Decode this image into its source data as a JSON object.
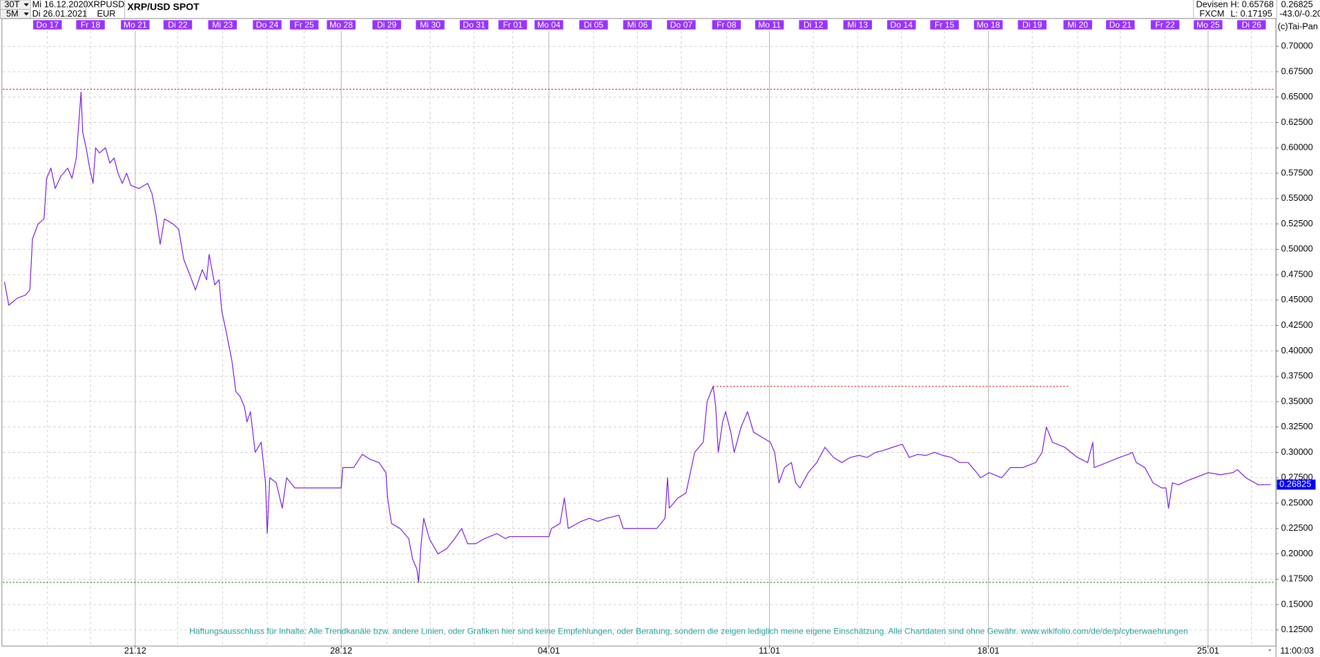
{
  "header": {
    "interval": "30T",
    "from_date": "Mi 16.12.2020",
    "symbol": "XRPUSD",
    "title": "XRP/USD SPOT",
    "resolution": "5M",
    "to_date": "Di 26.01.2021",
    "currency": "EUR",
    "market": "Devisen",
    "exchange": "FXCM",
    "high": "H: 0.65768",
    "low": "L: 0.17195",
    "change": "-43.0/-0.20",
    "copyright": "(c)Tai-Pan",
    "time": "11:00:03"
  },
  "chart_data": {
    "type": "line",
    "color": "#7b1fe0",
    "grid": true,
    "disclaimer": "Haftungsausschluss für Inhalte: Alle Trendkanäle bzw. andere Linien, oder Grafiken hier sind keine Empfehlungen, oder Beratung, sondern die zeigen lediglich meine eigene Einschätzung. Alle Chartdaten sind ohne Gewähr.  www.wikifolio.com/de/de/p/cyberwaehrungen",
    "last_price": 0.26825,
    "last_price_color": "#0000ff",
    "xlim": [
      -1.04,
      28.55
    ],
    "ylim": [
      0.11,
      0.715
    ],
    "yticks": [
      {
        "value": 0.125,
        "label": "0.12500"
      },
      {
        "value": 0.15,
        "label": "0.15000"
      },
      {
        "value": 0.175,
        "label": "0.17500"
      },
      {
        "value": 0.2,
        "label": "0.20000"
      },
      {
        "value": 0.225,
        "label": "0.22500"
      },
      {
        "value": 0.25,
        "label": "0.25000"
      },
      {
        "value": 0.275,
        "label": "0.27500"
      },
      {
        "value": 0.3,
        "label": "0.30000"
      },
      {
        "value": 0.325,
        "label": "0.32500"
      },
      {
        "value": 0.35,
        "label": "0.35000"
      },
      {
        "value": 0.375,
        "label": "0.37500"
      },
      {
        "value": 0.4,
        "label": "0.40000"
      },
      {
        "value": 0.425,
        "label": "0.42500"
      },
      {
        "value": 0.45,
        "label": "0.45000"
      },
      {
        "value": 0.475,
        "label": "0.47500"
      },
      {
        "value": 0.5,
        "label": "0.50000"
      },
      {
        "value": 0.525,
        "label": "0.52500"
      },
      {
        "value": 0.55,
        "label": "0.55000"
      },
      {
        "value": 0.575,
        "label": "0.57500"
      },
      {
        "value": 0.6,
        "label": "0.60000"
      },
      {
        "value": 0.625,
        "label": "0.62500"
      },
      {
        "value": 0.65,
        "label": "0.65000"
      },
      {
        "value": 0.675,
        "label": "0.67500"
      },
      {
        "value": 0.7,
        "label": "0.70000"
      }
    ],
    "xticks": [
      {
        "value": 2.04,
        "label": "21.12"
      },
      {
        "value": 6.83,
        "label": "28.12"
      },
      {
        "value": 11.66,
        "label": "04.01"
      },
      {
        "value": 16.79,
        "label": "11.01"
      },
      {
        "value": 21.88,
        "label": "18.01"
      },
      {
        "value": 26.99,
        "label": "25.01"
      }
    ],
    "day_ticks": [
      {
        "value": 0,
        "label": "Do 17"
      },
      {
        "value": 1.0,
        "label": "Fr 18"
      },
      {
        "value": 2.04,
        "label": "Mo 21"
      },
      {
        "value": 3.03,
        "label": "Di 22"
      },
      {
        "value": 4.07,
        "label": "Mi 23"
      },
      {
        "value": 5.11,
        "label": "Do 24"
      },
      {
        "value": 5.97,
        "label": "Fr 25"
      },
      {
        "value": 6.83,
        "label": "Mo 28"
      },
      {
        "value": 7.89,
        "label": "Di 29"
      },
      {
        "value": 8.9,
        "label": "Mi 30"
      },
      {
        "value": 9.92,
        "label": "Do 31"
      },
      {
        "value": 10.82,
        "label": "Fr 01"
      },
      {
        "value": 11.66,
        "label": "Mo 04"
      },
      {
        "value": 12.7,
        "label": "Di 05"
      },
      {
        "value": 13.72,
        "label": "Mi 06"
      },
      {
        "value": 14.74,
        "label": "Do 07"
      },
      {
        "value": 15.79,
        "label": "Fr 08"
      },
      {
        "value": 16.79,
        "label": "Mo 11"
      },
      {
        "value": 17.81,
        "label": "Di 12"
      },
      {
        "value": 18.84,
        "label": "Mi 13"
      },
      {
        "value": 19.86,
        "label": "Do 14"
      },
      {
        "value": 20.86,
        "label": "Fr 15"
      },
      {
        "value": 21.88,
        "label": "Mo 18"
      },
      {
        "value": 22.9,
        "label": "Di 19"
      },
      {
        "value": 23.96,
        "label": "Mi 20"
      },
      {
        "value": 24.95,
        "label": "Do 21"
      },
      {
        "value": 25.99,
        "label": "Fr 22"
      },
      {
        "value": 26.99,
        "label": "Mo 25"
      },
      {
        "value": 28.0,
        "label": "Di 26"
      }
    ],
    "day_label_color": "#9933ff",
    "reference_lines": [
      {
        "value": 0.65768,
        "color": "#e03030",
        "from": -1.04,
        "to": 28.55
      },
      {
        "value": 0.365,
        "color": "#e03030",
        "from": 15.48,
        "to": 23.76
      },
      {
        "value": 0.17195,
        "color": "#208020",
        "from": -1.04,
        "to": 28.55
      }
    ],
    "x": [
      -1.0,
      -0.9,
      -0.7,
      -0.51,
      -0.41,
      -0.35,
      -0.22,
      -0.08,
      -0.02,
      0.08,
      0.18,
      0.31,
      0.47,
      0.57,
      0.67,
      0.78,
      0.82,
      0.9,
      0.98,
      1.06,
      1.12,
      1.21,
      1.35,
      1.45,
      1.55,
      1.64,
      1.74,
      1.84,
      1.94,
      2.13,
      2.33,
      2.43,
      2.52,
      2.62,
      2.72,
      2.92,
      3.05,
      3.17,
      3.31,
      3.44,
      3.6,
      3.7,
      3.76,
      3.89,
      3.99,
      4.05,
      4.15,
      4.29,
      4.38,
      4.48,
      4.58,
      4.64,
      4.72,
      4.83,
      4.97,
      5.07,
      5.11,
      5.17,
      5.32,
      5.46,
      5.56,
      5.75,
      5.91,
      6.83,
      6.87,
      7.12,
      7.32,
      7.51,
      7.71,
      7.87,
      7.91,
      8.0,
      8.2,
      8.4,
      8.49,
      8.59,
      8.63,
      8.69,
      8.75,
      8.88,
      9.08,
      9.28,
      9.47,
      9.63,
      9.77,
      9.96,
      10.16,
      10.45,
      10.65,
      10.74,
      11.66,
      11.72,
      11.92,
      12.02,
      12.11,
      12.41,
      12.6,
      12.8,
      12.99,
      13.29,
      13.39,
      13.78,
      14.17,
      14.36,
      14.42,
      14.46,
      14.66,
      14.85,
      14.95,
      15.05,
      15.25,
      15.34,
      15.48,
      15.54,
      15.6,
      15.7,
      15.77,
      15.89,
      15.97,
      16.13,
      16.28,
      16.42,
      16.61,
      16.81,
      16.91,
      17.01,
      17.14,
      17.3,
      17.4,
      17.5,
      17.69,
      17.89,
      18.08,
      18.28,
      18.47,
      18.67,
      18.87,
      19.06,
      19.26,
      19.45,
      19.65,
      19.88,
      20.04,
      20.24,
      20.43,
      20.63,
      20.82,
      21.02,
      21.21,
      21.41,
      21.61,
      21.7,
      21.9,
      22.19,
      22.39,
      22.68,
      22.98,
      23.13,
      23.23,
      23.37,
      23.66,
      23.95,
      24.19,
      24.31,
      24.34,
      24.64,
      24.93,
      25.13,
      25.23,
      25.32,
      25.52,
      25.71,
      25.91,
      26.01,
      26.07,
      26.16,
      26.3,
      26.5,
      26.69,
      26.99,
      27.28,
      27.57,
      27.67,
      27.87,
      28.16,
      28.45
    ],
    "values": [
      0.468,
      0.445,
      0.452,
      0.455,
      0.46,
      0.51,
      0.525,
      0.53,
      0.57,
      0.58,
      0.56,
      0.572,
      0.58,
      0.57,
      0.59,
      0.655,
      0.615,
      0.6,
      0.58,
      0.565,
      0.6,
      0.595,
      0.6,
      0.585,
      0.59,
      0.575,
      0.565,
      0.575,
      0.563,
      0.56,
      0.565,
      0.555,
      0.535,
      0.505,
      0.53,
      0.525,
      0.52,
      0.49,
      0.475,
      0.46,
      0.48,
      0.47,
      0.495,
      0.465,
      0.47,
      0.44,
      0.42,
      0.39,
      0.36,
      0.355,
      0.345,
      0.33,
      0.34,
      0.3,
      0.31,
      0.27,
      0.22,
      0.275,
      0.27,
      0.245,
      0.275,
      0.265,
      0.265,
      0.265,
      0.285,
      0.285,
      0.298,
      0.293,
      0.29,
      0.28,
      0.255,
      0.23,
      0.225,
      0.215,
      0.195,
      0.185,
      0.172,
      0.21,
      0.235,
      0.215,
      0.2,
      0.205,
      0.215,
      0.225,
      0.21,
      0.21,
      0.215,
      0.22,
      0.215,
      0.217,
      0.217,
      0.225,
      0.23,
      0.255,
      0.225,
      0.232,
      0.235,
      0.232,
      0.235,
      0.238,
      0.225,
      0.225,
      0.225,
      0.235,
      0.275,
      0.245,
      0.255,
      0.26,
      0.28,
      0.3,
      0.31,
      0.35,
      0.365,
      0.345,
      0.3,
      0.33,
      0.34,
      0.32,
      0.3,
      0.325,
      0.34,
      0.32,
      0.315,
      0.31,
      0.3,
      0.27,
      0.285,
      0.29,
      0.27,
      0.265,
      0.28,
      0.29,
      0.305,
      0.295,
      0.29,
      0.295,
      0.297,
      0.295,
      0.3,
      0.302,
      0.305,
      0.308,
      0.295,
      0.298,
      0.297,
      0.3,
      0.297,
      0.295,
      0.29,
      0.29,
      0.28,
      0.275,
      0.28,
      0.275,
      0.285,
      0.285,
      0.29,
      0.3,
      0.325,
      0.31,
      0.305,
      0.295,
      0.29,
      0.31,
      0.285,
      0.29,
      0.295,
      0.298,
      0.3,
      0.29,
      0.285,
      0.27,
      0.265,
      0.265,
      0.245,
      0.27,
      0.268,
      0.272,
      0.275,
      0.28,
      0.278,
      0.28,
      0.283,
      0.275,
      0.268,
      0.26825
    ]
  }
}
